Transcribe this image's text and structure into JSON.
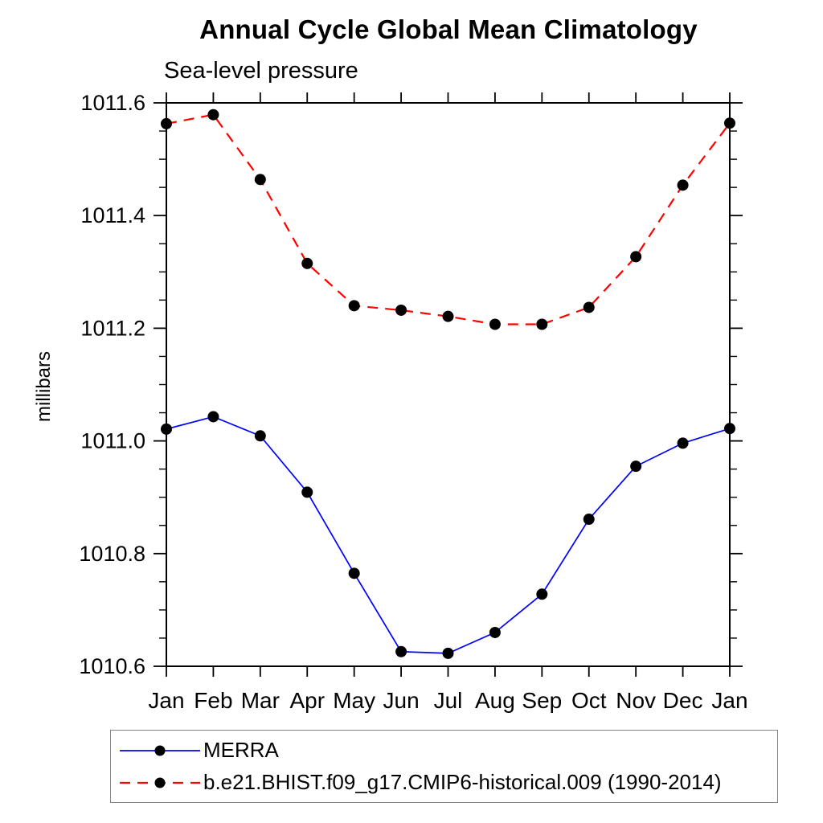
{
  "chart_data": {
    "type": "line",
    "title": "Annual Cycle Global Mean Climatology",
    "subtitle": "Sea-level pressure",
    "ylabel": "millibars",
    "xlabel": "",
    "x_categories": [
      "Jan",
      "Feb",
      "Mar",
      "Apr",
      "May",
      "Jun",
      "Jul",
      "Aug",
      "Sep",
      "Oct",
      "Nov",
      "Dec",
      "Jan"
    ],
    "ylim": [
      1010.6,
      1011.6
    ],
    "ytick_major_step": 0.2,
    "ytick_minor_step": 0.05,
    "ytick_labels": [
      "1010.6",
      "1010.8",
      "1011.0",
      "1011.2",
      "1011.4",
      "1011.6"
    ],
    "grid": false,
    "legend_position": "bottom-left",
    "axis_color": "#000000",
    "marker_color": "#000000",
    "marker_radius": 7,
    "series": [
      {
        "name": "MERRA",
        "color": "#0000ff",
        "line_style": "solid",
        "dash": "none",
        "line_width": 1.7,
        "values": [
          1011.021,
          1011.043,
          1011.009,
          1010.909,
          1010.765,
          1010.626,
          1010.623,
          1010.66,
          1010.728,
          1010.861,
          1010.955,
          1010.996,
          1011.022
        ]
      },
      {
        "name": "b.e21.BHIST.f09_g17.CMIP6-historical.009 (1990-2014)",
        "color": "#ff0000",
        "line_style": "dashed",
        "dash": "13 9",
        "line_width": 2.2,
        "values": [
          1011.563,
          1011.579,
          1011.464,
          1011.315,
          1011.24,
          1011.232,
          1011.221,
          1011.207,
          1011.207,
          1011.237,
          1011.327,
          1011.454,
          1011.564
        ]
      }
    ]
  }
}
